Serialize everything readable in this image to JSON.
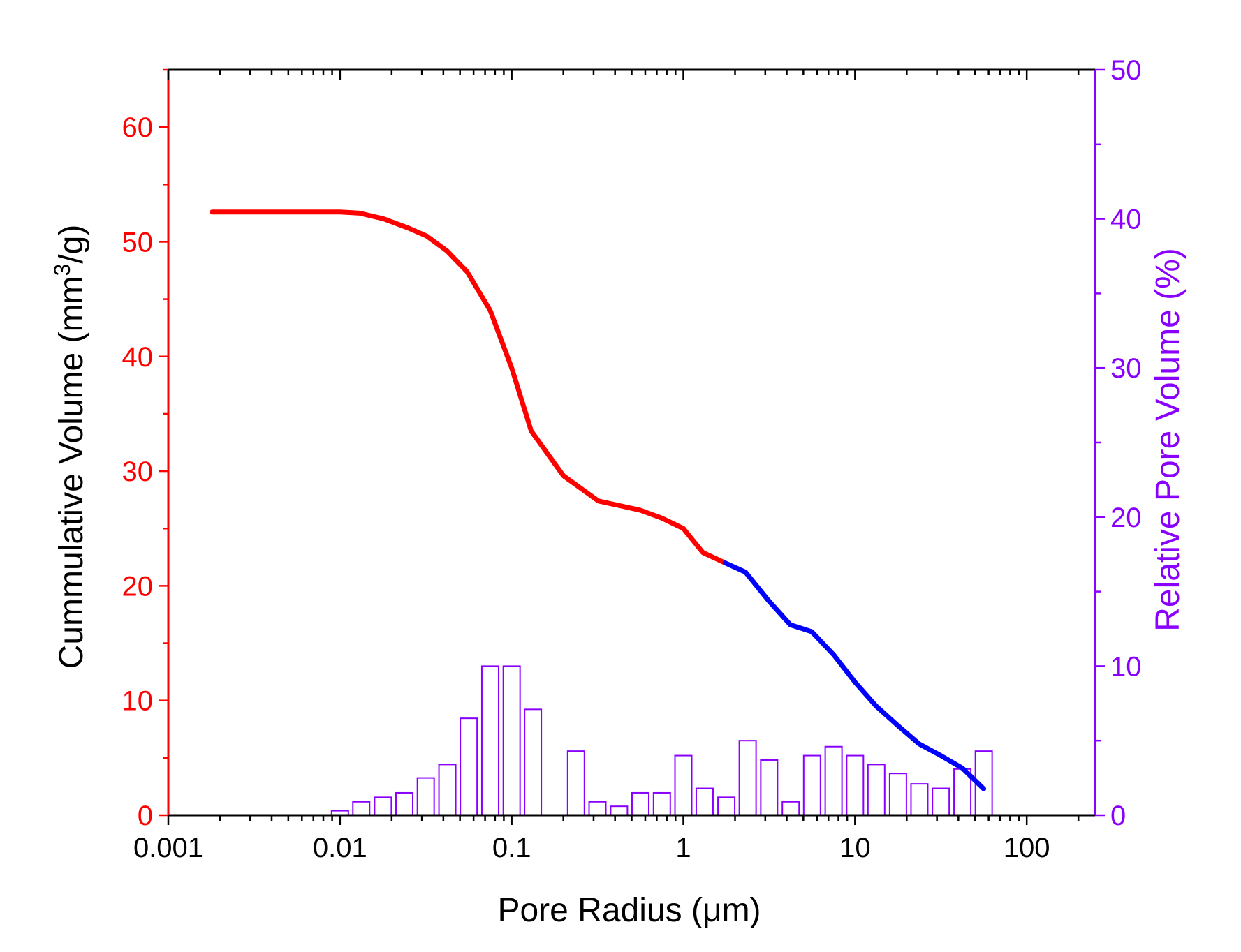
{
  "chart_data": {
    "type": "line+bar",
    "title": "",
    "xlabel": "Pore Radius (μm)",
    "ylabel_left": {
      "text": "Cummulative Volume (mm",
      "sup": "3",
      "suffix": "/g)"
    },
    "ylabel_right": "Relative Pore Volume (%)",
    "x_scale": "log",
    "xlim": [
      0.001,
      250
    ],
    "ylim_left": [
      0,
      65
    ],
    "ylim_right": [
      0,
      50
    ],
    "x_ticks": [
      0.001,
      0.01,
      0.1,
      1,
      10,
      100
    ],
    "x_tick_labels": [
      "0.001",
      "0.01",
      "0.1",
      "1",
      "10",
      "100"
    ],
    "y_left_ticks": [
      0,
      10,
      20,
      30,
      40,
      50,
      60
    ],
    "y_left_tick_labels": [
      "0",
      "10",
      "20",
      "30",
      "40",
      "50",
      "60"
    ],
    "y_right_ticks": [
      0,
      10,
      20,
      30,
      40,
      50
    ],
    "y_right_tick_labels": [
      "0",
      "10",
      "20",
      "30",
      "40",
      "50"
    ],
    "colors": {
      "left_axis": "#ff0000",
      "right_axis": "#8a00ff",
      "series_red": "#ff0000",
      "series_blue": "#0000ff",
      "bars": "#8a00ff"
    },
    "series": [
      {
        "name": "Cumulative volume (red segment)",
        "axis": "left",
        "color": "#ff0000",
        "x": [
          0.0018,
          0.005,
          0.01,
          0.013,
          0.018,
          0.025,
          0.032,
          0.042,
          0.055,
          0.075,
          0.1,
          0.13,
          0.2,
          0.32,
          0.56,
          0.75,
          1.0,
          1.3,
          1.75
        ],
        "y": [
          52.6,
          52.6,
          52.6,
          52.5,
          52.0,
          51.2,
          50.5,
          49.2,
          47.4,
          44.0,
          39.0,
          33.5,
          29.6,
          27.4,
          26.6,
          25.9,
          25.0,
          22.9,
          22.0
        ]
      },
      {
        "name": "Cumulative volume (blue segment)",
        "axis": "right-region",
        "color": "#0000ff",
        "x": [
          1.75,
          2.3,
          3.1,
          4.2,
          5.6,
          7.5,
          10,
          13.3,
          17.8,
          23.7,
          31.6,
          42.2,
          56.2
        ],
        "y": [
          22.0,
          21.2,
          18.8,
          16.6,
          16.0,
          14.0,
          11.6,
          9.5,
          7.8,
          6.2,
          5.2,
          4.1,
          2.3
        ]
      }
    ],
    "bars": {
      "axis": "right",
      "color": "#8a00ff",
      "x": [
        0.01,
        0.0133,
        0.0178,
        0.0237,
        0.0316,
        0.0422,
        0.0562,
        0.075,
        0.1,
        0.133,
        0.237,
        0.316,
        0.422,
        0.562,
        0.75,
        1.0,
        1.33,
        1.78,
        2.37,
        3.16,
        4.22,
        5.62,
        7.5,
        10,
        13.3,
        17.8,
        23.7,
        31.6,
        42.2,
        56.2
      ],
      "values": [
        0.3,
        0.9,
        1.2,
        1.5,
        2.5,
        3.4,
        6.5,
        10.0,
        10.0,
        7.1,
        4.3,
        0.9,
        0.6,
        1.5,
        1.5,
        4.0,
        1.8,
        1.2,
        5.0,
        3.7,
        0.9,
        4.0,
        4.6,
        4.0,
        3.4,
        2.8,
        2.1,
        1.8,
        3.1,
        4.3
      ]
    }
  }
}
